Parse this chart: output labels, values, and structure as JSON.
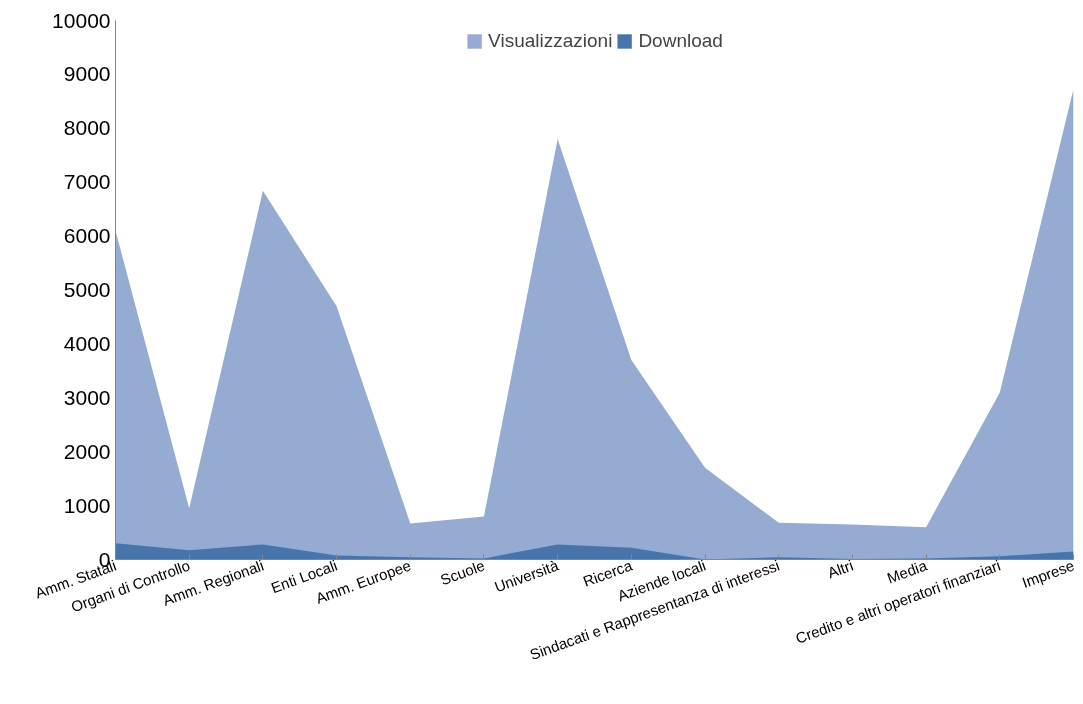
{
  "chart_data": {
    "type": "area",
    "categories": [
      "Amm. Statali",
      "Organi di Controllo",
      "Amm. Regionali",
      "Enti Locali",
      "Amm. Europee",
      "Scuole",
      "Università",
      "Ricerca",
      "Aziende locali",
      "Sindacati e Rappresentanza di interessi",
      "Altri",
      "Media",
      "Credito e altri operatori finanziari",
      "Imprese"
    ],
    "series": [
      {
        "name": "Visualizzazioni",
        "color": "#95abd2",
        "values": [
          6100,
          950,
          6840,
          4700,
          670,
          800,
          7800,
          3700,
          1700,
          680,
          650,
          600,
          3100,
          8730
        ]
      },
      {
        "name": "Download",
        "color": "#4774aa",
        "values": [
          300,
          170,
          280,
          75,
          40,
          20,
          280,
          220,
          0,
          40,
          10,
          20,
          60,
          150
        ]
      }
    ],
    "ylim": [
      0,
      10000
    ],
    "yticks": [
      0,
      1000,
      2000,
      3000,
      4000,
      5000,
      6000,
      7000,
      8000,
      9000,
      10000
    ],
    "grid": false,
    "legend": "top"
  }
}
